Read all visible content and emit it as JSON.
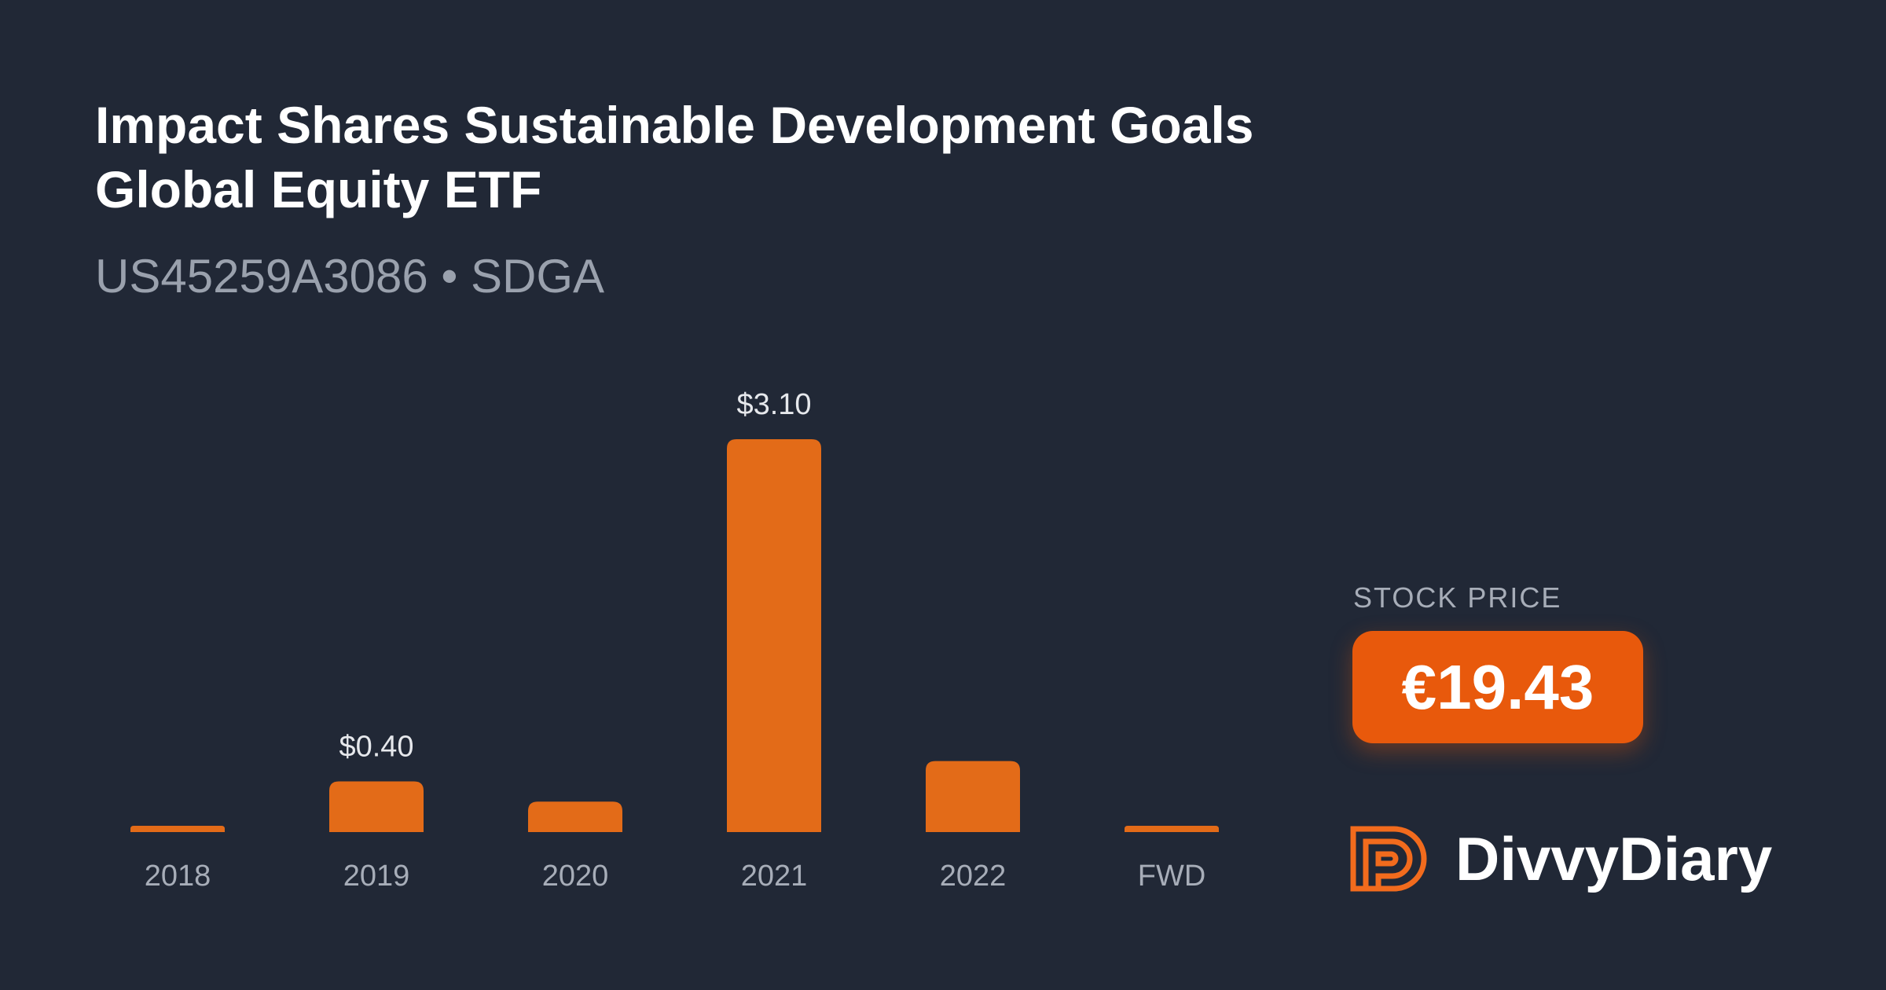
{
  "header": {
    "title": "Impact Shares Sustainable Development Goals Global Equity ETF",
    "subtitle": "US45259A3086 • SDGA"
  },
  "price": {
    "label": "STOCK PRICE",
    "value": "€19.43"
  },
  "brand": {
    "name": "DivvyDiary",
    "icon": "divvydiary-logo-icon"
  },
  "colors": {
    "background": "#212836",
    "bar": "#e36b18",
    "accent": "#e8590c",
    "muted_text": "#9aa1ad"
  },
  "chart_data": {
    "type": "bar",
    "categories": [
      "2018",
      "2019",
      "2020",
      "2021",
      "2022",
      "FWD"
    ],
    "values": [
      0.03,
      0.4,
      0.24,
      3.1,
      0.56,
      0.03
    ],
    "data_labels": [
      "",
      "$0.40",
      "",
      "$3.10",
      "",
      ""
    ],
    "ylim": [
      0,
      3.1
    ],
    "grid": false,
    "legend": "none"
  }
}
